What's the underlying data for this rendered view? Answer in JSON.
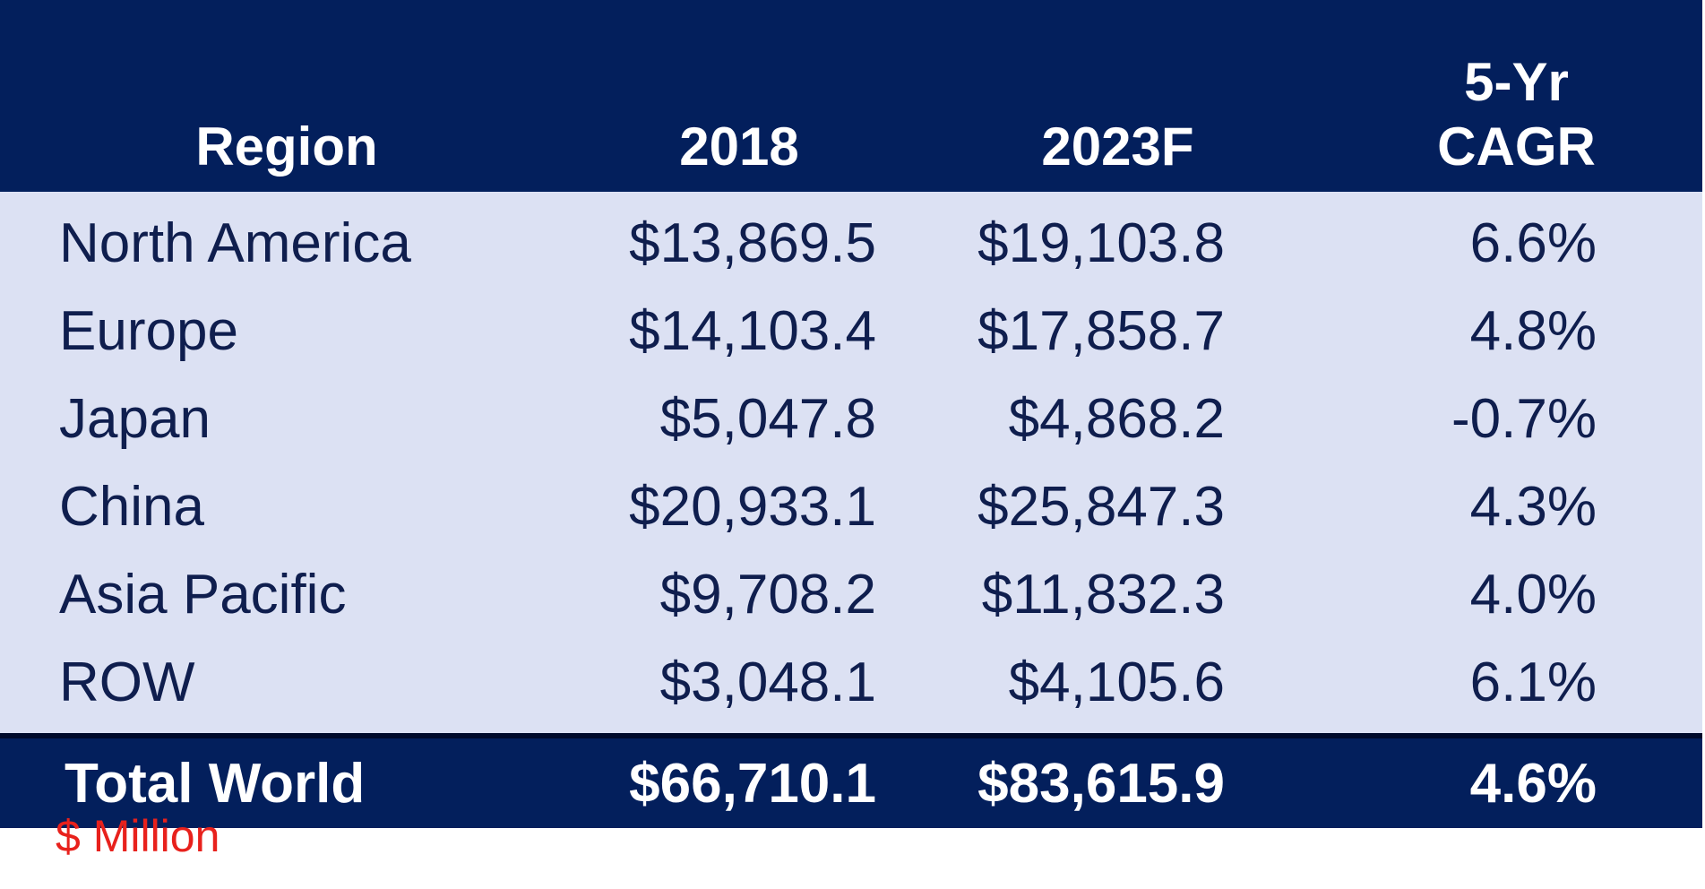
{
  "table": {
    "headers": {
      "region": "Region",
      "year_2018": "2018",
      "year_2023": "2023F",
      "cagr_line1": "5-Yr",
      "cagr_line2": "CAGR"
    },
    "rows": [
      {
        "region": "North America",
        "v2018": "$13,869.5",
        "v2023": "$19,103.8",
        "cagr": "6.6%"
      },
      {
        "region": "Europe",
        "v2018": "$14,103.4",
        "v2023": "$17,858.7",
        "cagr": "4.8%"
      },
      {
        "region": "Japan",
        "v2018": "$5,047.8",
        "v2023": "$4,868.2",
        "cagr": "-0.7%"
      },
      {
        "region": "China",
        "v2018": "$20,933.1",
        "v2023": "$25,847.3",
        "cagr": "4.3%"
      },
      {
        "region": "Asia Pacific",
        "v2018": "$9,708.2",
        "v2023": "$11,832.3",
        "cagr": "4.0%"
      },
      {
        "region": "ROW",
        "v2018": "$3,048.1",
        "v2023": "$4,105.6",
        "cagr": "6.1%"
      }
    ],
    "total": {
      "region": "Total World",
      "v2018": "$66,710.1",
      "v2023": "$83,615.9",
      "cagr": "4.6%"
    }
  },
  "note": "$ Million",
  "colors": {
    "header_bg": "#031f5c",
    "body_bg": "#dce1f3",
    "body_text": "#0f1e4e",
    "note_text": "#e8211c"
  }
}
